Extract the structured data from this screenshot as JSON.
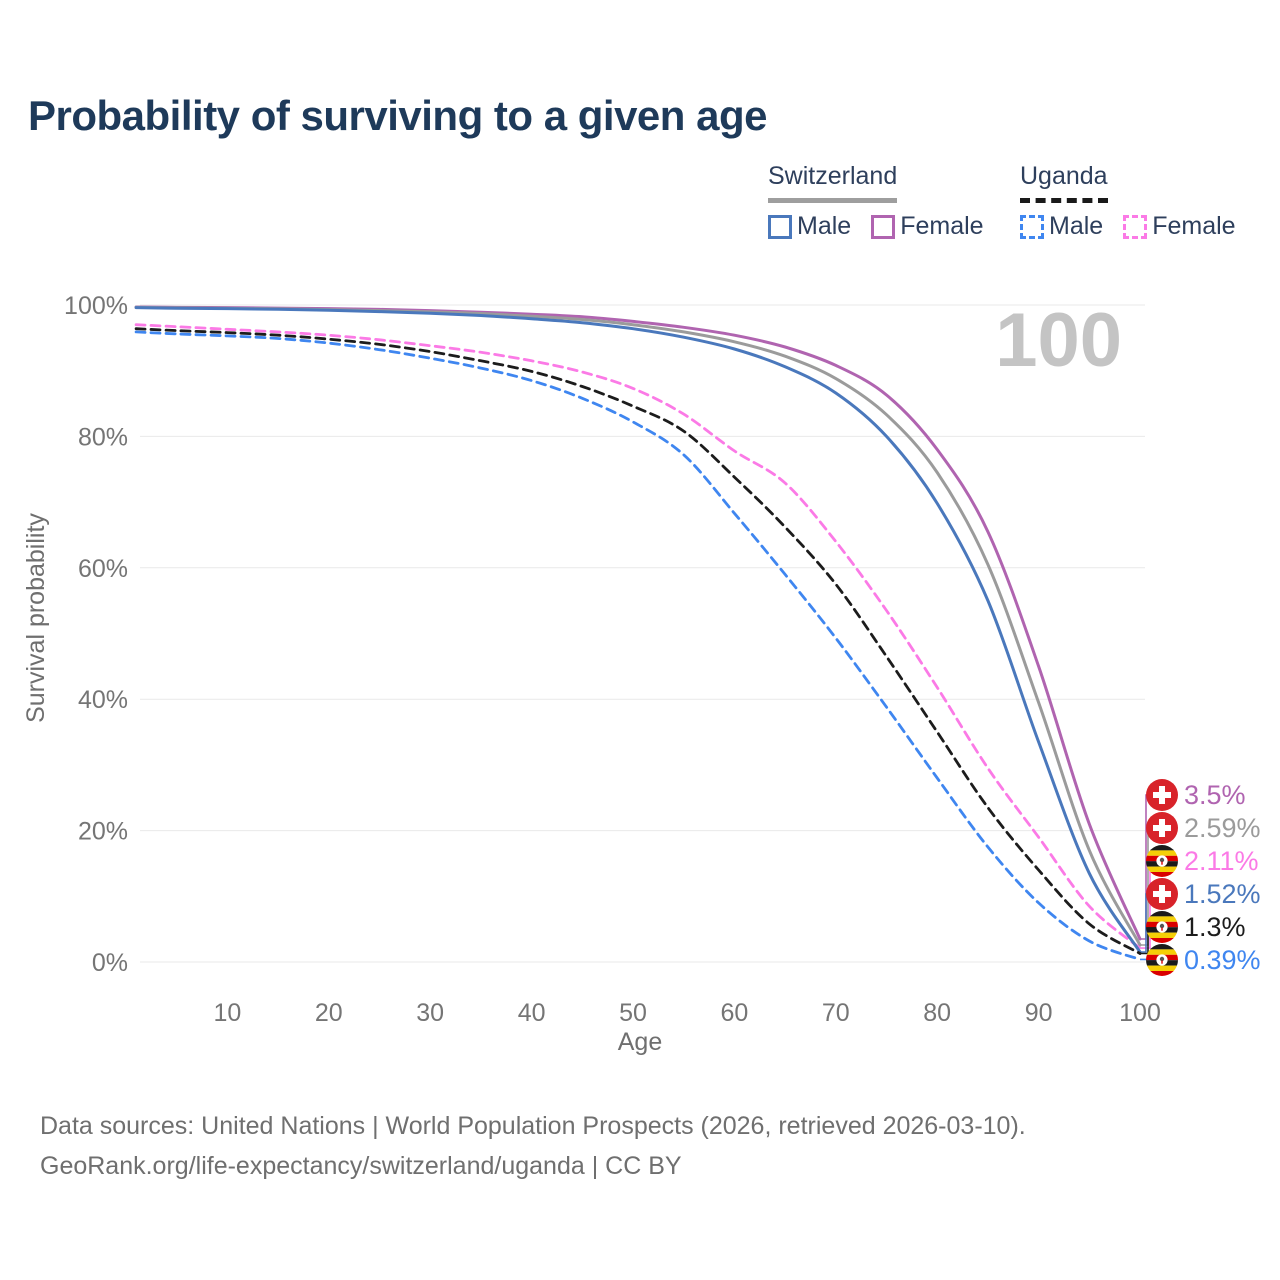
{
  "header": {
    "title": "Probability of surviving to a given age"
  },
  "legend": {
    "groups": [
      {
        "title": "Switzerland",
        "line_style": "solid",
        "underline_color": "#9e9e9e",
        "items": [
          {
            "label": "Male",
            "color": "#4a78bc"
          },
          {
            "label": "Female",
            "color": "#b064b0"
          }
        ]
      },
      {
        "title": "Uganda",
        "line_style": "dashed",
        "underline_color": "#1a1a1a",
        "items": [
          {
            "label": "Male",
            "color": "#3f86f0"
          },
          {
            "label": "Female",
            "color": "#fb7ae6"
          }
        ]
      }
    ]
  },
  "chart_data": {
    "type": "line",
    "title": "Probability of surviving to a given age",
    "xlabel": "Age",
    "ylabel": "Survival probability",
    "xlim": [
      1,
      100
    ],
    "ylim": [
      0,
      100
    ],
    "grid": "horizontal",
    "legend_position": "top-right",
    "watermark": "100",
    "x_ticks": [
      "10",
      "20",
      "30",
      "40",
      "50",
      "60",
      "70",
      "80",
      "90",
      "100"
    ],
    "y_ticks": [
      "0%",
      "20%",
      "40%",
      "60%",
      "80%",
      "100%"
    ],
    "x": [
      1,
      5,
      10,
      15,
      20,
      25,
      30,
      35,
      40,
      45,
      50,
      55,
      60,
      65,
      70,
      75,
      80,
      85,
      90,
      95,
      100
    ],
    "series": [
      {
        "name": "Switzerland Female",
        "country": "Switzerland",
        "sex": "Female",
        "color": "#b064b0",
        "dashed": false,
        "flag": "switzerland",
        "end_label": "3.5%",
        "values": [
          99.7,
          99.64,
          99.6,
          99.53,
          99.45,
          99.33,
          99.15,
          98.9,
          98.6,
          98.2,
          97.5,
          96.6,
          95.4,
          93.6,
          90.8,
          86.3,
          78.0,
          65.5,
          45.0,
          21.0,
          3.5
        ]
      },
      {
        "name": "Switzerland Both sexes",
        "country": "Switzerland",
        "sex": "Both",
        "color": "#9b9b9b",
        "dashed": false,
        "flag": "switzerland",
        "end_label": "2.59%",
        "values": [
          99.65,
          99.57,
          99.5,
          99.42,
          99.3,
          99.15,
          98.95,
          98.7,
          98.3,
          97.8,
          97.0,
          95.9,
          94.4,
          92.2,
          88.8,
          83.3,
          74.5,
          60.5,
          39.5,
          17.0,
          2.59
        ]
      },
      {
        "name": "Uganda Female",
        "country": "Uganda",
        "sex": "Female",
        "color": "#fb7ae6",
        "dashed": true,
        "flag": "uganda",
        "end_label": "2.11%",
        "values": [
          97.0,
          96.7,
          96.3,
          95.9,
          95.4,
          94.7,
          93.8,
          92.8,
          91.5,
          89.8,
          87.3,
          83.4,
          77.8,
          72.9,
          64.0,
          53.5,
          41.8,
          29.5,
          19.0,
          8.5,
          2.11
        ]
      },
      {
        "name": "Switzerland Male",
        "country": "Switzerland",
        "sex": "Male",
        "color": "#4a78bc",
        "dashed": false,
        "flag": "switzerland",
        "end_label": "1.52%",
        "values": [
          99.6,
          99.5,
          99.45,
          99.35,
          99.2,
          99.0,
          98.75,
          98.4,
          97.9,
          97.3,
          96.4,
          95.1,
          93.3,
          90.6,
          86.6,
          80.0,
          69.8,
          55.0,
          33.5,
          13.5,
          1.52
        ]
      },
      {
        "name": "Uganda Both sexes",
        "country": "Uganda",
        "sex": "Both",
        "color": "#1c1c1c",
        "dashed": true,
        "flag": "uganda",
        "end_label": "1.3%",
        "values": [
          96.4,
          96.1,
          95.8,
          95.4,
          94.8,
          94.0,
          92.9,
          91.5,
          89.9,
          87.6,
          84.6,
          80.8,
          73.8,
          66.2,
          57.5,
          46.5,
          35.0,
          23.5,
          14.0,
          5.8,
          1.3
        ]
      },
      {
        "name": "Uganda Male",
        "country": "Uganda",
        "sex": "Male",
        "color": "#3f86f0",
        "dashed": true,
        "flag": "uganda",
        "end_label": "0.39%",
        "values": [
          95.9,
          95.6,
          95.3,
          94.9,
          94.2,
          93.2,
          91.9,
          90.4,
          88.5,
          85.8,
          82.2,
          77.2,
          68.3,
          59.0,
          49.3,
          38.8,
          28.0,
          17.5,
          9.0,
          3.2,
          0.39
        ]
      }
    ]
  },
  "footer": {
    "line1": "Data sources: United Nations | World Population Prospects (2026, retrieved 2026-03-10).",
    "line2": "GeoRank.org/life-expectancy/switzerland/uganda | CC BY"
  }
}
